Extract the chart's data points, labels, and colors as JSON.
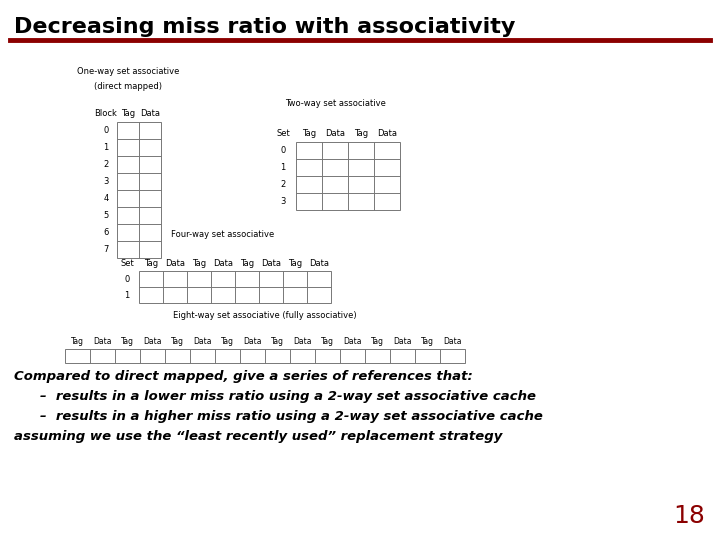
{
  "title": "Decreasing miss ratio with associativity",
  "title_color": "#000000",
  "title_fontsize": 16,
  "line_color": "#8B0000",
  "bg_color": "#ffffff",
  "body_text_color": "#000000",
  "table_line_color": "#777777",
  "page_number": "18",
  "page_number_color": "#8B0000",
  "bullet_line1": "Compared to direct mapped, give a series of references that:",
  "bullet_line2": "–  results in a lower miss ratio using a 2-way set associative cache",
  "bullet_line3": "–  results in a higher miss ratio using a 2-way set associative cache",
  "bullet_line4": "assuming we use the “least recently used” replacement strategy",
  "one_way_label": "One-way set associative",
  "one_way_sub": "(direct mapped)",
  "one_way_cols": [
    "Block",
    "Tag",
    "Data"
  ],
  "one_way_rows": [
    "0",
    "1",
    "2",
    "3",
    "4",
    "5",
    "6",
    "7"
  ],
  "two_way_label": "Two-way set associative",
  "two_way_cols": [
    "Set",
    "Tag",
    "Data",
    "Tag",
    "Data"
  ],
  "two_way_rows": [
    "0",
    "1",
    "2",
    "3"
  ],
  "four_way_label": "Four-way set associative",
  "four_way_cols": [
    "Set",
    "Tag",
    "Data",
    "Tag",
    "Data",
    "Tag",
    "Data",
    "Tag",
    "Data"
  ],
  "four_way_rows": [
    "0",
    "1"
  ],
  "eight_way_label": "Eight-way set associative (fully associative)",
  "eight_way_cols": [
    "Tag",
    "Data",
    "Tag",
    "Data",
    "Tag",
    "Data",
    "Tag",
    "Data",
    "Tag",
    "Data",
    "Tag",
    "Data",
    "Tag",
    "Data",
    "Tag",
    "Data"
  ]
}
